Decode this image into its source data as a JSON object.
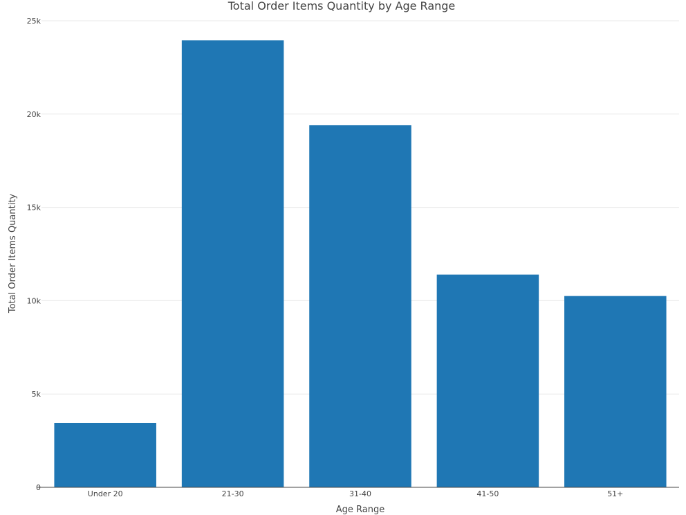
{
  "chart_data": {
    "type": "bar",
    "title": "Total Order Items Quantity by Age Range",
    "xlabel": "Age Range",
    "ylabel": "Total Order Items Quantity",
    "categories": [
      "Under 20",
      "21-30",
      "31-40",
      "41-50",
      "51+"
    ],
    "values": [
      3450,
      23950,
      19400,
      11400,
      10250
    ],
    "ylim": [
      0,
      25000
    ],
    "yticks": [
      0,
      5000,
      10000,
      15000,
      20000,
      25000
    ],
    "ytick_labels": [
      "0",
      "5k",
      "10k",
      "15k",
      "20k",
      "25k"
    ],
    "grid": true,
    "legend": "none",
    "bar_color": "#1f77b4"
  }
}
